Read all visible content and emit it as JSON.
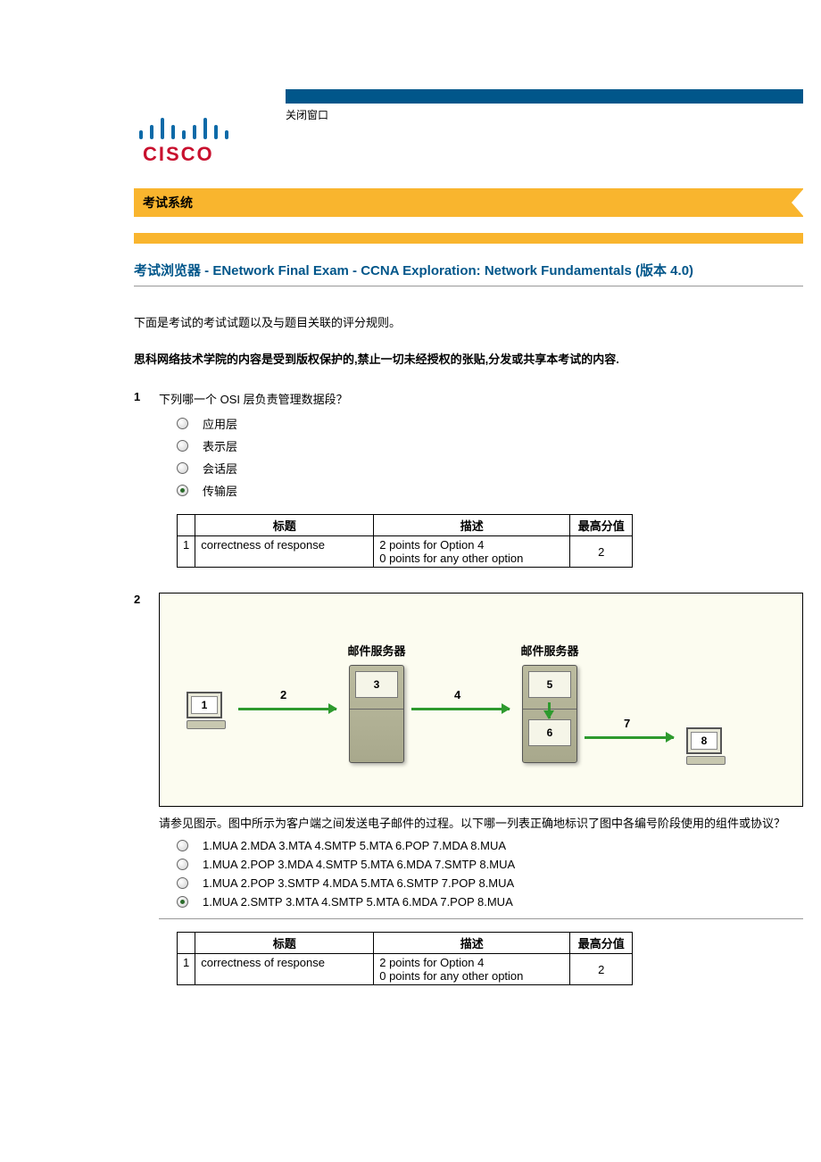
{
  "header": {
    "close_link": "关闭窗口",
    "banner": "考试系统"
  },
  "exam": {
    "title": "考试浏览器 - ENetwork Final Exam - CCNA Exploration: Network Fundamentals (版本 4.0)",
    "intro": "下面是考试的考试试题以及与题目关联的评分规则。",
    "copyright": "思科网络技术学院的内容是受到版权保护的,禁止一切未经授权的张贴,分发或共享本考试的内容."
  },
  "score_header": {
    "c1": "标题",
    "c2": "描述",
    "c3": "最高分值"
  },
  "q1": {
    "num": "1",
    "text": "下列哪一个 OSI 层负责管理数据段？",
    "options": [
      "应用层",
      "表示层",
      "会话层",
      "传输层"
    ],
    "selected": 3,
    "score": {
      "row_num": "1",
      "title": "correctness of response",
      "desc1": "2 points for Option 4",
      "desc2": "0 points for any other option",
      "max": "2"
    }
  },
  "q2": {
    "num": "2",
    "diagram": {
      "server_label": "邮件服务器",
      "nodes": {
        "pc1": "1",
        "s1_top": "3",
        "s2_top": "5",
        "s2_bot": "6",
        "pc2": "8"
      },
      "arrows": {
        "a2": "2",
        "a4": "4",
        "a7": "7"
      }
    },
    "text": "请参见图示。图中所示为客户端之间发送电子邮件的过程。以下哪一列表正确地标识了图中各编号阶段使用的组件或协议？",
    "options": [
      "1.MUA 2.MDA 3.MTA 4.SMTP 5.MTA 6.POP 7.MDA 8.MUA",
      "1.MUA 2.POP 3.MDA 4.SMTP 5.MTA 6.MDA 7.SMTP 8.MUA",
      "1.MUA 2.POP 3.SMTP 4.MDA 5.MTA 6.SMTP 7.POP 8.MUA",
      "1.MUA 2.SMTP 3.MTA 4.SMTP 5.MTA 6.MDA 7.POP 8.MUA"
    ],
    "selected": 3,
    "score": {
      "row_num": "1",
      "title": "correctness of response",
      "desc1": "2 points for Option 4",
      "desc2": "0 points for any other option",
      "max": "2"
    }
  }
}
